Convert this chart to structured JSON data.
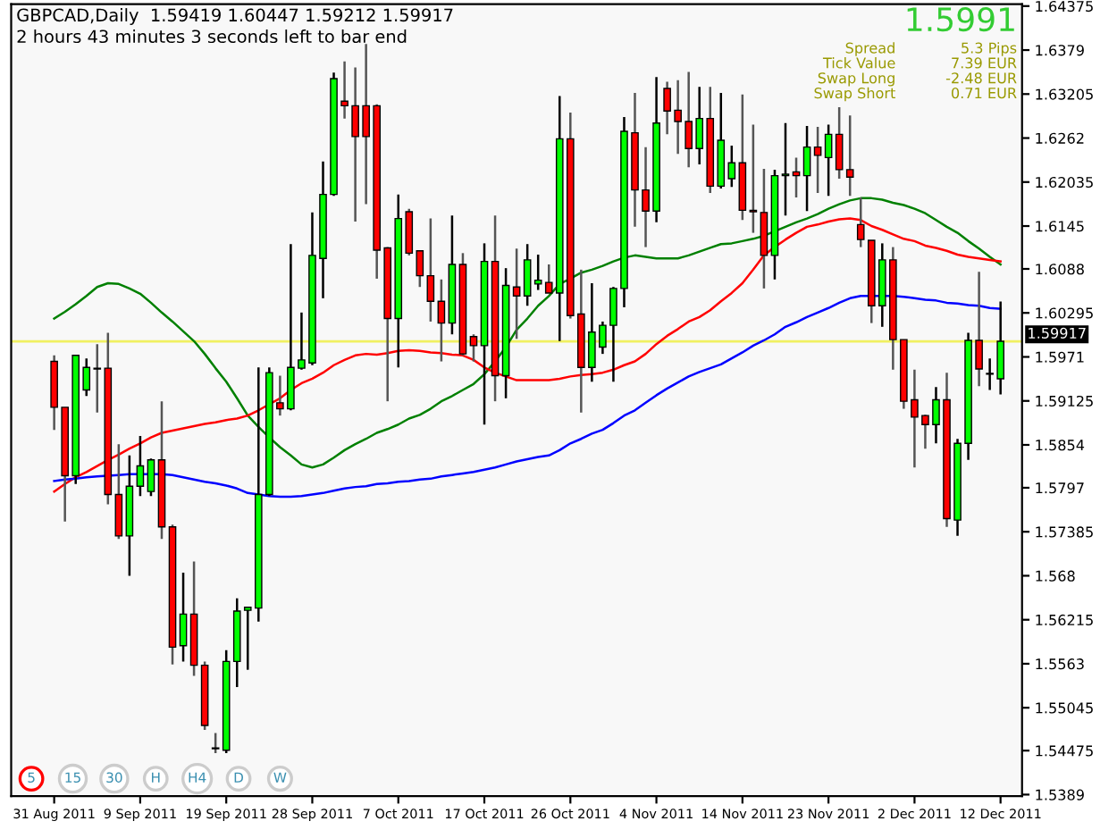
{
  "chart_data": {
    "type": "candlestick",
    "title": "GBPCAD,Daily  1.59419 1.60447 1.59212 1.59917",
    "subtitle": "2 hours 43 minutes 3 seconds left to bar end",
    "categories": [
      "31 Aug 2011",
      null,
      null,
      null,
      null,
      null,
      null,
      null,
      "9 Sep 2011",
      null,
      null,
      null,
      null,
      null,
      null,
      null,
      "19 Sep 2011",
      null,
      null,
      null,
      null,
      null,
      null,
      null,
      "28 Sep 2011",
      null,
      null,
      null,
      null,
      null,
      null,
      null,
      "7 Oct 2011",
      null,
      null,
      null,
      null,
      null,
      null,
      null,
      "17 Oct 2011",
      null,
      null,
      null,
      null,
      null,
      null,
      null,
      "26 Oct 2011",
      null,
      null,
      null,
      null,
      null,
      null,
      null,
      "4 Nov 2011",
      null,
      null,
      null,
      null,
      null,
      null,
      null,
      "14 Nov 2011",
      null,
      null,
      null,
      null,
      null,
      null,
      null,
      "23 Nov 2011",
      null,
      null,
      null,
      null,
      null,
      null,
      null,
      "2 Dec 2011",
      null,
      null,
      null,
      null,
      null,
      null,
      null,
      "12 Dec 2011"
    ],
    "ohlc": [
      [
        1.5965,
        1.5973,
        1.5874,
        1.5904
      ],
      [
        1.5904,
        1.5904,
        1.5752,
        1.5813
      ],
      [
        1.5813,
        1.5973,
        1.5802,
        1.5973
      ],
      [
        1.5927,
        1.5969,
        1.5919,
        1.5957
      ],
      [
        1.5956,
        1.5988,
        1.5897,
        1.5955
      ],
      [
        1.5956,
        1.6003,
        1.5775,
        1.5788
      ],
      [
        1.5788,
        1.5855,
        1.5729,
        1.5733
      ],
      [
        1.5733,
        1.584,
        1.568,
        1.5799
      ],
      [
        1.5799,
        1.5866,
        1.5786,
        1.5826
      ],
      [
        1.5792,
        1.5836,
        1.5786,
        1.5834
      ],
      [
        1.5834,
        1.5912,
        1.5729,
        1.5745
      ],
      [
        1.5745,
        1.5748,
        1.5562,
        1.5585
      ],
      [
        1.5587,
        1.5684,
        1.5566,
        1.5629
      ],
      [
        1.5629,
        1.5699,
        1.5547,
        1.5561
      ],
      [
        1.5561,
        1.5566,
        1.5475,
        1.5481
      ],
      [
        1.5451,
        1.5471,
        1.5444,
        1.545
      ],
      [
        1.5448,
        1.5581,
        1.5444,
        1.5566
      ],
      [
        1.5566,
        1.565,
        1.5532,
        1.5633
      ],
      [
        1.5634,
        1.5638,
        1.5555,
        1.5638
      ],
      [
        1.5637,
        1.5957,
        1.5619,
        1.5788
      ],
      [
        1.5788,
        1.5957,
        1.5786,
        1.595
      ],
      [
        1.591,
        1.5946,
        1.5893,
        1.5902
      ],
      [
        1.5902,
        1.6121,
        1.59,
        1.5957
      ],
      [
        1.5956,
        1.603,
        1.5954,
        1.5967
      ],
      [
        1.5963,
        1.6163,
        1.596,
        1.6106
      ],
      [
        1.6102,
        1.6231,
        1.6049,
        1.6187
      ],
      [
        1.6187,
        1.6349,
        1.6185,
        1.6341
      ],
      [
        1.6311,
        1.6364,
        1.6288,
        1.6305
      ],
      [
        1.6305,
        1.6356,
        1.6151,
        1.6264
      ],
      [
        1.6305,
        1.6387,
        1.6174,
        1.6264
      ],
      [
        1.6305,
        1.6307,
        1.6075,
        1.6113
      ],
      [
        1.6116,
        1.6117,
        1.5912,
        1.6022
      ],
      [
        1.6022,
        1.6187,
        1.5957,
        1.6155
      ],
      [
        1.6164,
        1.6168,
        1.6106,
        1.6109
      ],
      [
        1.6112,
        1.6112,
        1.6064,
        1.6079
      ],
      [
        1.6079,
        1.6155,
        1.6018,
        1.6045
      ],
      [
        1.6045,
        1.6074,
        1.5965,
        1.6016
      ],
      [
        1.6016,
        1.6159,
        1.6001,
        1.6094
      ],
      [
        1.6094,
        1.6109,
        1.5973,
        1.5975
      ],
      [
        1.5998,
        1.6001,
        1.5965,
        1.5986
      ],
      [
        1.5986,
        1.6122,
        1.5881,
        1.6098
      ],
      [
        1.6098,
        1.6159,
        1.5912,
        1.5946
      ],
      [
        1.5946,
        1.6089,
        1.5916,
        1.6066
      ],
      [
        1.6064,
        1.6115,
        1.5995,
        1.6052
      ],
      [
        1.6052,
        1.6121,
        1.6039,
        1.61
      ],
      [
        1.6068,
        1.6107,
        1.606,
        1.6073
      ],
      [
        1.607,
        1.6094,
        1.6056,
        1.6056
      ],
      [
        1.6056,
        1.6318,
        1.5992,
        1.6261
      ],
      [
        1.6261,
        1.6296,
        1.6022,
        1.6026
      ],
      [
        1.6028,
        1.6087,
        1.5897,
        1.5957
      ],
      [
        1.5957,
        1.6069,
        1.5938,
        1.6004
      ],
      [
        1.5984,
        1.6018,
        1.5975,
        1.6013
      ],
      [
        1.6013,
        1.6064,
        1.5938,
        1.6062
      ],
      [
        1.6062,
        1.629,
        1.6037,
        1.6271
      ],
      [
        1.6269,
        1.6322,
        1.6144,
        1.6193
      ],
      [
        1.6193,
        1.625,
        1.6117,
        1.6165
      ],
      [
        1.6165,
        1.6343,
        1.615,
        1.6282
      ],
      [
        1.6328,
        1.6337,
        1.6267,
        1.6298
      ],
      [
        1.6299,
        1.6339,
        1.6241,
        1.6284
      ],
      [
        1.6284,
        1.635,
        1.6223,
        1.6248
      ],
      [
        1.6248,
        1.633,
        1.6227,
        1.6288
      ],
      [
        1.6288,
        1.633,
        1.6189,
        1.6198
      ],
      [
        1.6198,
        1.6322,
        1.6195,
        1.6259
      ],
      [
        1.6208,
        1.6252,
        1.6197,
        1.6229
      ],
      [
        1.6229,
        1.632,
        1.6153,
        1.6166
      ],
      [
        1.6166,
        1.628,
        1.6136,
        1.6164
      ],
      [
        1.6163,
        1.6221,
        1.6062,
        1.6106
      ],
      [
        1.6106,
        1.622,
        1.6074,
        1.6212
      ],
      [
        1.6212,
        1.6282,
        1.6159,
        1.6214
      ],
      [
        1.6217,
        1.6236,
        1.6183,
        1.6212
      ],
      [
        1.6212,
        1.6278,
        1.6165,
        1.625
      ],
      [
        1.625,
        1.6277,
        1.6189,
        1.6239
      ],
      [
        1.6236,
        1.628,
        1.6185,
        1.6267
      ],
      [
        1.6267,
        1.6303,
        1.6208,
        1.622
      ],
      [
        1.622,
        1.6292,
        1.6185,
        1.621
      ],
      [
        1.6147,
        1.6183,
        1.6117,
        1.6127
      ],
      [
        1.6126,
        1.6126,
        1.6016,
        1.6039
      ],
      [
        1.6039,
        1.6122,
        1.6011,
        1.61
      ],
      [
        1.61,
        1.6117,
        1.5954,
        1.5994
      ],
      [
        1.5994,
        1.5994,
        1.5902,
        1.5912
      ],
      [
        1.5914,
        1.5954,
        1.5824,
        1.5891
      ],
      [
        1.5893,
        1.5894,
        1.5849,
        1.5881
      ],
      [
        1.5881,
        1.5931,
        1.5856,
        1.5914
      ],
      [
        1.5914,
        1.595,
        1.5745,
        1.5756
      ],
      [
        1.5754,
        1.5862,
        1.5733,
        1.5856
      ],
      [
        1.5856,
        1.6003,
        1.5834,
        1.5993
      ],
      [
        1.5993,
        1.6084,
        1.5932,
        1.5955
      ],
      [
        1.5948,
        1.5969,
        1.5927,
        1.5949
      ],
      [
        1.59419,
        1.60447,
        1.59212,
        1.59917
      ]
    ],
    "series": [
      {
        "type": "line",
        "color": "#008000",
        "values": [
          1.6022,
          1.6031,
          1.6041,
          1.6052,
          1.6064,
          1.6069,
          1.6068,
          1.6062,
          1.6055,
          1.6043,
          1.603,
          1.6018,
          1.6005,
          1.5992,
          1.5975,
          1.5956,
          1.5938,
          1.5916,
          1.5893,
          1.5878,
          1.5864,
          1.5851,
          1.584,
          1.5828,
          1.5824,
          1.5828,
          1.5837,
          1.5847,
          1.5855,
          1.5862,
          1.587,
          1.5875,
          1.5881,
          1.5889,
          1.5894,
          1.5902,
          1.5912,
          1.5919,
          1.5927,
          1.5935,
          1.5948,
          1.5965,
          1.5984,
          1.6007,
          1.6022,
          1.6039,
          1.6052,
          1.6068,
          1.6075,
          1.6083,
          1.6087,
          1.6092,
          1.6098,
          1.6103,
          1.6106,
          1.6104,
          1.6102,
          1.6102,
          1.6102,
          1.6106,
          1.6111,
          1.6116,
          1.6121,
          1.6122,
          1.6125,
          1.6128,
          1.6132,
          1.6138,
          1.6144,
          1.615,
          1.6155,
          1.6161,
          1.6168,
          1.6174,
          1.6179,
          1.6182,
          1.6182,
          1.618,
          1.6176,
          1.6173,
          1.6168,
          1.6162,
          1.6153,
          1.6144,
          1.6136,
          1.6125,
          1.6115,
          1.6104,
          1.6094
        ]
      },
      {
        "type": "line",
        "color": "#ff0000",
        "values": [
          1.5792,
          1.5802,
          1.5811,
          1.5818,
          1.5826,
          1.5834,
          1.5841,
          1.5849,
          1.5856,
          1.5864,
          1.587,
          1.5873,
          1.5876,
          1.5879,
          1.5882,
          1.5884,
          1.5887,
          1.5889,
          1.5893,
          1.59,
          1.5908,
          1.5916,
          1.5927,
          1.5936,
          1.5942,
          1.595,
          1.596,
          1.5967,
          1.5973,
          1.5975,
          1.5974,
          1.5976,
          1.5979,
          1.598,
          1.5979,
          1.5977,
          1.5976,
          1.5974,
          1.5973,
          1.5967,
          1.5957,
          1.595,
          1.5945,
          1.594,
          1.594,
          1.594,
          1.594,
          1.5942,
          1.5945,
          1.5947,
          1.5948,
          1.595,
          1.5954,
          1.596,
          1.5965,
          1.5975,
          1.5988,
          1.5999,
          1.6008,
          1.6018,
          1.6024,
          1.6033,
          1.6045,
          1.6056,
          1.6069,
          1.6087,
          1.6106,
          1.6117,
          1.6127,
          1.6136,
          1.6144,
          1.6147,
          1.6151,
          1.6154,
          1.6155,
          1.6153,
          1.6145,
          1.614,
          1.6134,
          1.6128,
          1.6125,
          1.6119,
          1.6116,
          1.6112,
          1.6107,
          1.6104,
          1.6102,
          1.61,
          1.6098
        ]
      },
      {
        "type": "line",
        "color": "#0000ff",
        "values": [
          1.5806,
          1.5808,
          1.5809,
          1.5811,
          1.5812,
          1.5813,
          1.5814,
          1.5815,
          1.5815,
          1.5815,
          1.5815,
          1.5814,
          1.5811,
          1.5808,
          1.5805,
          1.5803,
          1.58,
          1.5796,
          1.579,
          1.5788,
          1.5786,
          1.5785,
          1.5785,
          1.5786,
          1.5788,
          1.579,
          1.5793,
          1.5796,
          1.5798,
          1.5799,
          1.5802,
          1.5803,
          1.5805,
          1.5806,
          1.5808,
          1.5809,
          1.5812,
          1.5814,
          1.5816,
          1.5818,
          1.5821,
          1.5824,
          1.5828,
          1.5832,
          1.5835,
          1.5838,
          1.584,
          1.5847,
          1.5856,
          1.5862,
          1.5869,
          1.5874,
          1.5883,
          1.5893,
          1.59,
          1.591,
          1.592,
          1.5929,
          1.5937,
          1.5945,
          1.5951,
          1.5956,
          1.5961,
          1.5969,
          1.5977,
          1.5986,
          1.5993,
          1.6001,
          1.6011,
          1.6017,
          1.6024,
          1.603,
          1.6036,
          1.6043,
          1.6049,
          1.6052,
          1.6052,
          1.6052,
          1.6052,
          1.6051,
          1.6049,
          1.6047,
          1.6046,
          1.6043,
          1.6042,
          1.604,
          1.6039,
          1.6036,
          1.6035
        ]
      }
    ],
    "ylim": [
      1.5387,
      1.644
    ],
    "yticks": [
      1.64375,
      1.6379,
      1.63205,
      1.6262,
      1.62035,
      1.6145,
      1.6088,
      1.60295,
      1.5971,
      1.59125,
      1.5854,
      1.5797,
      1.57385,
      1.568,
      1.56215,
      1.5563,
      1.55045,
      1.54475,
      1.5389
    ],
    "ref_lines": [
      {
        "axis": "y",
        "value": 1.59917,
        "label": "1.59917",
        "color": "#f0f060"
      }
    ],
    "annotations": [
      "1.5991",
      "Spread",
      "5.3 Pips",
      "Tick Value",
      "7.39 EUR",
      "Swap Long",
      "-2.48 EUR",
      "Swap Short",
      "0.71 EUR",
      "5",
      "15",
      "30",
      "H",
      "H4",
      "D",
      "W"
    ],
    "grid": false,
    "legend": false
  }
}
